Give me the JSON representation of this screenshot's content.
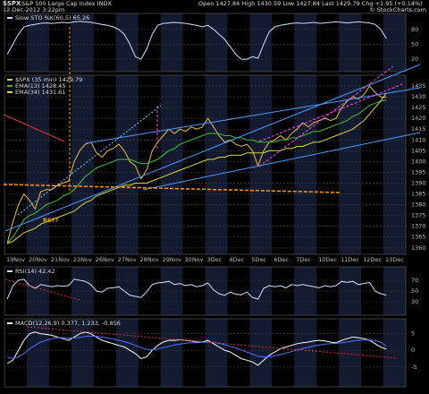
{
  "header": {
    "symbol": "$SPX",
    "name": "S&P 500 Large Cap Index  INDX",
    "date": "12-Dec-2012 3:22pm",
    "quote": "Open 1427.84  High 1430.59  Low 1427.84  Last 1429.79  Chg +1.95 (+0.14%)",
    "credit": "© StockCharts.com"
  },
  "chart_data": [
    {
      "type": "line",
      "ylim": [
        -5,
        112
      ],
      "yticks": [
        20,
        50,
        80
      ],
      "grid": true,
      "series": [
        {
          "name": "Slow STO %K(60,5) 65.26",
          "color": "#cfe0ff",
          "values": [
            30,
            50,
            70,
            85,
            88,
            90,
            92,
            93,
            92,
            93,
            94,
            93,
            95,
            96,
            95,
            94,
            92,
            90,
            88,
            85,
            80,
            70,
            50,
            25,
            20,
            40,
            70,
            88,
            92,
            93,
            94,
            93,
            92,
            90,
            88,
            85,
            88,
            80,
            70,
            60,
            45,
            30,
            20,
            20,
            25,
            22,
            50,
            75,
            85,
            88,
            90,
            92,
            93,
            92,
            93,
            94,
            92,
            93,
            94,
            95,
            94,
            93,
            94,
            95,
            94,
            93,
            90,
            80,
            62,
            null,
            null,
            null
          ]
        }
      ]
    },
    {
      "type": "line",
      "ylim": [
        1357,
        1440
      ],
      "yticks": [
        1360,
        1365,
        1370,
        1375,
        1380,
        1385,
        1390,
        1395,
        1400,
        1405,
        1410,
        1415,
        1420,
        1425,
        1430,
        1435
      ],
      "grid": true,
      "categories": [
        "19Nov",
        null,
        null,
        null,
        "20Nov",
        null,
        null,
        null,
        "21Nov",
        null,
        null,
        null,
        "23Nov",
        null,
        null,
        null,
        "26Nov",
        null,
        null,
        null,
        "27Nov",
        null,
        null,
        null,
        "28Nov",
        null,
        null,
        null,
        "29Nov",
        null,
        null,
        null,
        "30Nov",
        null,
        null,
        null,
        "3Dec",
        null,
        null,
        null,
        "4Dec",
        null,
        null,
        null,
        "5Dec",
        null,
        null,
        null,
        "6Dec",
        null,
        null,
        null,
        "7Dec",
        null,
        null,
        null,
        "10Dec",
        null,
        null,
        null,
        "11Dec",
        null,
        null,
        null,
        "12Dec",
        null,
        null,
        null,
        "13Dec",
        null,
        null,
        null
      ],
      "annotations": [
        "RS??"
      ],
      "series": [
        {
          "name": "$SPX (35 min) 1429.79",
          "color": "#e8c040",
          "values": [
            1362,
            1372,
            1380,
            1385,
            1382,
            1378,
            1386,
            1387,
            1387,
            1389,
            1390,
            1391,
            1400,
            1405,
            1408,
            1409,
            1404,
            1402,
            1405,
            1406,
            1408,
            1405,
            1400,
            1398,
            1392,
            1396,
            1405,
            1409,
            1412,
            1415,
            1413,
            1415,
            1414,
            1416,
            1415,
            1416,
            1420,
            1416,
            1412,
            1409,
            1410,
            1408,
            1407,
            1408,
            1405,
            1398,
            1405,
            1409,
            1410,
            1412,
            1410,
            1413,
            1415,
            1418,
            1416,
            1418,
            1419,
            1420,
            1419,
            1420,
            1425,
            1428,
            1430,
            1429,
            1431,
            1435,
            1432,
            1430,
            1429.79,
            null,
            null,
            null
          ]
        },
        {
          "name": "EMA(13) 1428.45",
          "color": "#3cc03c",
          "values": [
            1362,
            1365,
            1369,
            1373,
            1375,
            1376,
            1378,
            1380,
            1381,
            1382,
            1384,
            1385,
            1387,
            1390,
            1393,
            1395,
            1397,
            1398,
            1399,
            1400,
            1401,
            1401,
            1401,
            1400,
            1399,
            1399,
            1400,
            1401,
            1403,
            1405,
            1406,
            1408,
            1409,
            1410,
            1411,
            1412,
            1413,
            1413,
            1413,
            1412,
            1412,
            1411,
            1411,
            1410,
            1410,
            1409,
            1409,
            1409,
            1409,
            1410,
            1410,
            1411,
            1411,
            1412,
            1413,
            1414,
            1414,
            1415,
            1416,
            1417,
            1418,
            1419,
            1421,
            1422,
            1424,
            1426,
            1427,
            1428,
            1428.45,
            null,
            null,
            null
          ]
        },
        {
          "name": "EMA(34) 1431.61",
          "color": "#d8d840",
          "values": [
            1362,
            1363,
            1365,
            1367,
            1368,
            1369,
            1371,
            1372,
            1373,
            1374,
            1375,
            1376,
            1377,
            1379,
            1381,
            1382,
            1384,
            1385,
            1386,
            1387,
            1388,
            1389,
            1389,
            1390,
            1390,
            1390,
            1391,
            1392,
            1393,
            1394,
            1395,
            1396,
            1397,
            1398,
            1399,
            1400,
            1401,
            1401,
            1402,
            1402,
            1403,
            1403,
            1403,
            1404,
            1404,
            1404,
            1404,
            1405,
            1405,
            1405,
            1406,
            1406,
            1407,
            1407,
            1408,
            1409,
            1409,
            1410,
            1411,
            1412,
            1413,
            1414,
            1415,
            1417,
            1419,
            1422,
            1425,
            1428,
            1431.61,
            null,
            null,
            null
          ]
        }
      ]
    },
    {
      "type": "line",
      "ylim": [
        5,
        95
      ],
      "yticks": [
        30,
        50,
        70
      ],
      "grid": true,
      "series": [
        {
          "name": "RSI(14) 42.42",
          "color": "#cfe0ff",
          "values": [
            35,
            60,
            70,
            72,
            60,
            55,
            62,
            60,
            58,
            60,
            59,
            60,
            72,
            70,
            68,
            62,
            50,
            48,
            55,
            56,
            58,
            50,
            42,
            40,
            38,
            48,
            62,
            65,
            66,
            68,
            62,
            64,
            60,
            62,
            58,
            60,
            65,
            52,
            45,
            42,
            48,
            44,
            43,
            48,
            38,
            35,
            55,
            60,
            58,
            60,
            56,
            62,
            60,
            62,
            60,
            58,
            56,
            60,
            58,
            60,
            68,
            66,
            68,
            62,
            64,
            66,
            50,
            45,
            42.42,
            null,
            null,
            null
          ]
        }
      ]
    },
    {
      "type": "line",
      "ylim": [
        -11,
        9.5
      ],
      "yticks": [
        -5,
        0,
        5
      ],
      "grid": true,
      "series": [
        {
          "name": "MACD(12,26,9) 0.377, 1.233, -0.856",
          "color": "#ffffff",
          "values": [
            -4,
            -3,
            0,
            3,
            5,
            5.5,
            5,
            4.8,
            4.5,
            4,
            3.5,
            3,
            4,
            5,
            5.5,
            5,
            4,
            3,
            2.5,
            2,
            1.5,
            1,
            0,
            -1,
            -2.5,
            -2,
            0,
            1.5,
            2.5,
            3,
            3,
            3.2,
            3,
            2.8,
            2.5,
            2.5,
            3,
            2,
            1,
            0,
            -0.5,
            -1.5,
            -2.5,
            -3,
            -3.5,
            -4.5,
            -3,
            -1.5,
            -0.5,
            0.5,
            1,
            1.5,
            2,
            2.3,
            2.5,
            2.8,
            3,
            2.8,
            2.5,
            2.3,
            3,
            3.5,
            4,
            3.8,
            3.5,
            3,
            2,
            1,
            0.377,
            null,
            null,
            null
          ]
        },
        {
          "color": "#4a78ff",
          "values": [
            -2,
            -2.5,
            -2,
            -1,
            0.5,
            1.5,
            2.5,
            3,
            3.5,
            3.8,
            3.8,
            3.7,
            3.7,
            3.9,
            4.2,
            4.3,
            4.2,
            4,
            3.7,
            3.4,
            3,
            2.6,
            2.1,
            1.5,
            0.8,
            0.3,
            0.2,
            0.4,
            0.8,
            1.2,
            1.6,
            1.9,
            2.1,
            2.3,
            2.3,
            2.4,
            2.5,
            2.4,
            2.1,
            1.7,
            1.2,
            0.7,
            0.1,
            -0.5,
            -1.1,
            -1.8,
            -2,
            -2,
            -1.7,
            -1.3,
            -0.8,
            -0.4,
            0.1,
            0.5,
            0.9,
            1.3,
            1.6,
            1.9,
            2,
            2.1,
            2.3,
            2.5,
            2.8,
            3,
            3.1,
            3.1,
            2.9,
            2.5,
            1.233,
            null,
            null,
            null
          ]
        }
      ]
    }
  ]
}
